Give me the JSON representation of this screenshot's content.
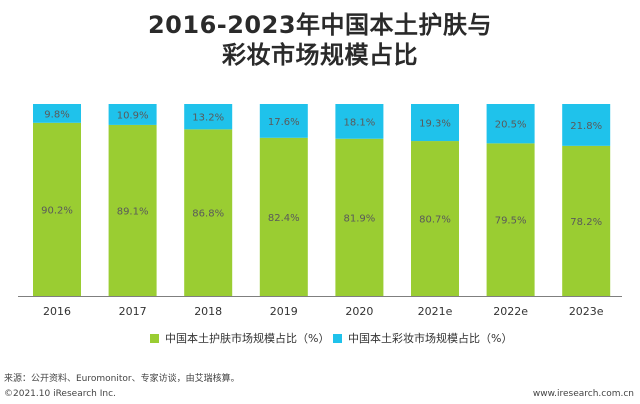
{
  "title": {
    "line1": "2016-2023年中国本土护肤与",
    "line2": "彩妆市场规模占比"
  },
  "colors": {
    "skincare": "#9ACD32",
    "cosmetics": "#1FC2EB",
    "label_text": "#5a5a5a",
    "axis": "#7f7f7f"
  },
  "chart_data": {
    "type": "bar",
    "stacked": true,
    "categories": [
      "2016",
      "2017",
      "2018",
      "2019",
      "2020",
      "2021e",
      "2022e",
      "2023e"
    ],
    "series": [
      {
        "name": "中国本土护肤市场规模占比（%）",
        "values": [
          90.2,
          89.1,
          86.8,
          82.4,
          81.9,
          80.7,
          79.5,
          78.2
        ],
        "labels": [
          "90.2%",
          "89.1%",
          "86.8%",
          "82.4%",
          "81.9%",
          "80.7%",
          "79.5%",
          "78.2%"
        ]
      },
      {
        "name": "中国本土彩妆市场规模占比（%）",
        "values": [
          9.8,
          10.9,
          13.2,
          17.6,
          18.1,
          19.3,
          20.5,
          21.8
        ],
        "labels": [
          "9.8%",
          "10.9%",
          "13.2%",
          "17.6%",
          "18.1%",
          "19.3%",
          "20.5%",
          "21.8%"
        ]
      }
    ],
    "ylim": [
      0,
      100
    ],
    "grid": false,
    "legend_position": "bottom"
  },
  "footer": {
    "source": "来源：公开资料、Euromonitor、专家访谈，由艾瑞核算。",
    "copyright": "©2021.10 iResearch Inc.",
    "website": "www.iresearch.com.cn"
  }
}
